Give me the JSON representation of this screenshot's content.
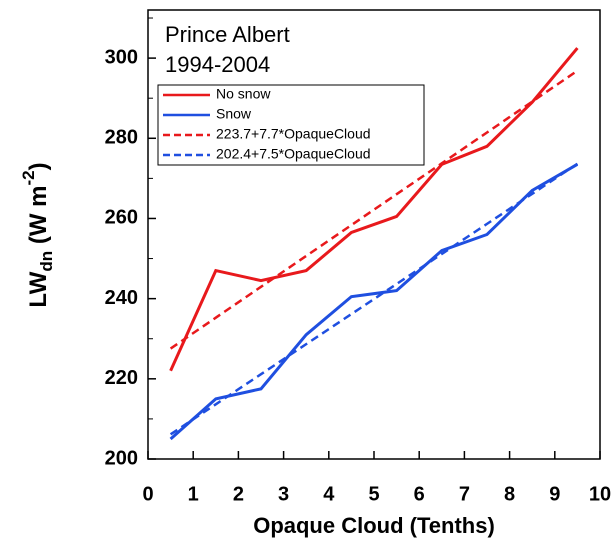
{
  "chart_data": {
    "type": "line",
    "title": [
      "Prince Albert",
      "1994-2004"
    ],
    "x_label": "Opaque Cloud (Tenths)",
    "y_label": [
      "LW",
      "dn",
      " (W m",
      "-2",
      ")"
    ],
    "x": [
      0.5,
      1.5,
      2.5,
      3.5,
      4.5,
      5.5,
      6.5,
      7.5,
      8.5,
      9.5
    ],
    "series": [
      {
        "name": "No snow",
        "color": "#e8191c",
        "dash": false,
        "values": [
          222,
          247,
          244.5,
          247,
          256.5,
          260.5,
          273.5,
          278,
          289,
          302.5
        ]
      },
      {
        "name": "Snow",
        "color": "#1f4fe0",
        "dash": false,
        "values": [
          205,
          215,
          217.5,
          231,
          240.5,
          242,
          252,
          256,
          267,
          273.5
        ]
      },
      {
        "name": "223.7+7.7*OpaqueCloud",
        "color": "#e8191c",
        "dash": true,
        "values": [
          227.55,
          235.25,
          242.95,
          250.65,
          258.35,
          266.05,
          273.75,
          281.45,
          289.15,
          296.85
        ]
      },
      {
        "name": "202.4+7.5*OpaqueCloud",
        "color": "#1f4fe0",
        "dash": true,
        "values": [
          206.15,
          213.65,
          221.15,
          228.65,
          236.15,
          243.65,
          251.15,
          258.65,
          266.15,
          273.65
        ]
      }
    ],
    "xlim": [
      0,
      10
    ],
    "xticks": [
      0,
      1,
      2,
      3,
      4,
      5,
      6,
      7,
      8,
      9,
      10
    ],
    "ylim": [
      200,
      312
    ],
    "yticks": [
      200,
      220,
      240,
      260,
      280,
      300
    ],
    "yminorticks": [
      210,
      230,
      250,
      270,
      290,
      310
    ],
    "legend": "upper-left"
  }
}
